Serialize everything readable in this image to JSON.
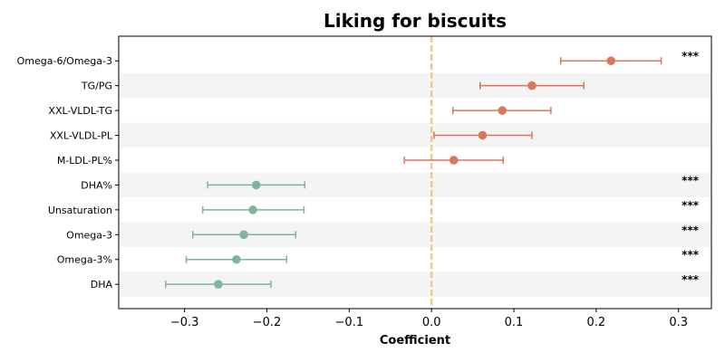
{
  "chart_data": {
    "type": "forest",
    "title": "Liking for biscuits",
    "xlabel": "Coefficient",
    "ylabel": "",
    "xlim": [
      -0.38,
      0.34
    ],
    "xticks": [
      -0.3,
      -0.2,
      -0.1,
      0.0,
      0.1,
      0.2,
      0.3
    ],
    "xtick_labels": [
      "−0.3",
      "−0.2",
      "−0.1",
      "0.0",
      "0.1",
      "0.2",
      "0.3"
    ],
    "reference_line": 0.0,
    "colors": {
      "positive": "#d9765f",
      "negative": "#7fb59a",
      "reference": "#f0c98a",
      "band": "#f4f4f4"
    },
    "rows": [
      {
        "label": "Omega-6/Omega-3",
        "estimate": 0.218,
        "ci_low": 0.157,
        "ci_high": 0.279,
        "significance": "***"
      },
      {
        "label": "TG/PG",
        "estimate": 0.122,
        "ci_low": 0.059,
        "ci_high": 0.185,
        "significance": ""
      },
      {
        "label": "XXL-VLDL-TG",
        "estimate": 0.086,
        "ci_low": 0.026,
        "ci_high": 0.145,
        "significance": ""
      },
      {
        "label": "XXL-VLDL-PL",
        "estimate": 0.062,
        "ci_low": 0.003,
        "ci_high": 0.122,
        "significance": ""
      },
      {
        "label": "M-LDL-PL%",
        "estimate": 0.027,
        "ci_low": -0.033,
        "ci_high": 0.087,
        "significance": ""
      },
      {
        "label": "DHA%",
        "estimate": -0.213,
        "ci_low": -0.272,
        "ci_high": -0.154,
        "significance": "***"
      },
      {
        "label": "Unsaturation",
        "estimate": -0.217,
        "ci_low": -0.278,
        "ci_high": -0.155,
        "significance": "***"
      },
      {
        "label": "Omega-3",
        "estimate": -0.228,
        "ci_low": -0.29,
        "ci_high": -0.165,
        "significance": "***"
      },
      {
        "label": "Omega-3%",
        "estimate": -0.237,
        "ci_low": -0.298,
        "ci_high": -0.176,
        "significance": "***"
      },
      {
        "label": "DHA",
        "estimate": -0.259,
        "ci_low": -0.323,
        "ci_high": -0.195,
        "significance": "***"
      }
    ]
  }
}
